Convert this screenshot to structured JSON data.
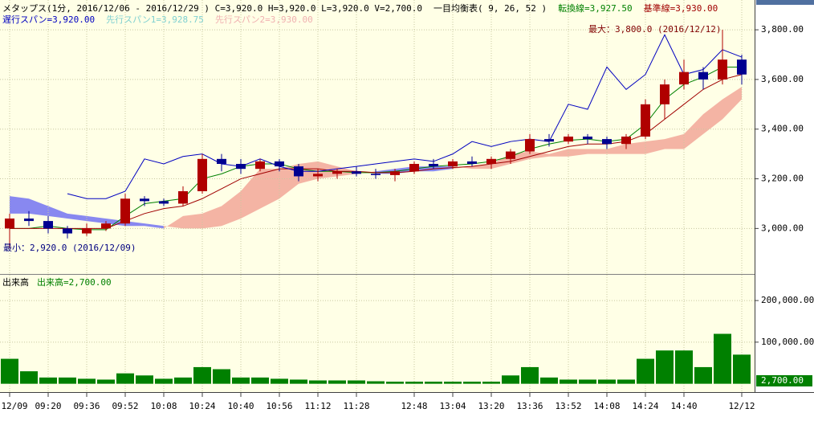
{
  "chart_data": [
    {
      "type": "candlestick",
      "title": "メタップス(1分, 2016/12/06 - 2016/12/29 ) C=3,920.0 H=3,920.0 L=3,920.0 V=2,700.0",
      "subtitle": "一目均衡表( 9, 26, 52 )",
      "ohlc": {
        "open": [
          3000,
          3040,
          3030,
          3000,
          2980,
          3000,
          3020,
          3120,
          3110,
          3100,
          3150,
          3280,
          3260,
          3240,
          3270,
          3250,
          3210,
          3220,
          3230,
          3220,
          3215,
          3230,
          3260,
          3250,
          3270,
          3260,
          3280,
          3310,
          3360,
          3350,
          3370,
          3360,
          3340,
          3370,
          3500,
          3580,
          3630,
          3600,
          3680
        ],
        "high": [
          3060,
          3070,
          3050,
          3010,
          3020,
          3030,
          3140,
          3130,
          3120,
          3170,
          3300,
          3300,
          3280,
          3280,
          3280,
          3260,
          3240,
          3240,
          3250,
          3240,
          3240,
          3270,
          3280,
          3280,
          3290,
          3290,
          3320,
          3380,
          3380,
          3380,
          3380,
          3370,
          3380,
          3520,
          3600,
          3680,
          3650,
          3800,
          3700
        ],
        "low": [
          2920,
          3010,
          2980,
          2960,
          2970,
          2990,
          3010,
          3090,
          3090,
          3090,
          3140,
          3230,
          3220,
          3230,
          3230,
          3190,
          3190,
          3200,
          3210,
          3200,
          3190,
          3220,
          3240,
          3240,
          3250,
          3240,
          3260,
          3300,
          3330,
          3340,
          3340,
          3320,
          3320,
          3360,
          3440,
          3560,
          3560,
          3580,
          3580
        ],
        "close": [
          3040,
          3030,
          3000,
          2980,
          3000,
          3020,
          3120,
          3110,
          3100,
          3150,
          3280,
          3260,
          3240,
          3270,
          3250,
          3210,
          3220,
          3230,
          3220,
          3215,
          3230,
          3260,
          3250,
          3270,
          3260,
          3280,
          3310,
          3360,
          3350,
          3370,
          3360,
          3340,
          3370,
          3500,
          3580,
          3630,
          3600,
          3680,
          3620
        ]
      },
      "up_color": "#b00000",
      "down_color": "#000090",
      "series": [
        {
          "name": "転換線=3,927.50",
          "color": "#008000",
          "kind": "line",
          "values": [
            3000,
            3000,
            3010,
            3000,
            2995,
            2995,
            3050,
            3100,
            3110,
            3120,
            3200,
            3220,
            3250,
            3260,
            3260,
            3240,
            3230,
            3230,
            3225,
            3225,
            3230,
            3240,
            3250,
            3255,
            3260,
            3270,
            3290,
            3320,
            3340,
            3355,
            3360,
            3350,
            3360,
            3420,
            3520,
            3580,
            3610,
            3650,
            3650
          ]
        },
        {
          "name": "基準線=3,930.00",
          "color": "#a00000",
          "kind": "line",
          "values": [
            3000,
            3000,
            3000,
            3000,
            3000,
            3000,
            3030,
            3060,
            3080,
            3090,
            3120,
            3160,
            3200,
            3220,
            3240,
            3240,
            3240,
            3230,
            3230,
            3225,
            3225,
            3230,
            3240,
            3245,
            3250,
            3260,
            3270,
            3290,
            3310,
            3330,
            3340,
            3340,
            3350,
            3380,
            3440,
            3500,
            3560,
            3600,
            3620
          ]
        },
        {
          "name": "遅行スパン=3,920.00",
          "color": "#0000c0",
          "kind": "line",
          "values": [
            null,
            null,
            null,
            3140,
            3120,
            3120,
            3150,
            3280,
            3260,
            3290,
            3300,
            3260,
            3250,
            3280,
            3250,
            3230,
            3230,
            3240,
            3250,
            3260,
            3270,
            3280,
            3270,
            3300,
            3350,
            3330,
            3350,
            3360,
            3350,
            3500,
            3480,
            3650,
            3560,
            3620,
            3780,
            3620,
            3640,
            3720,
            3690
          ]
        },
        {
          "name": "先行スパン1=3,928.75",
          "color": "#7fd0d0",
          "kind": "span",
          "values": [
            3060,
            3060,
            3050,
            3040,
            3030,
            3020,
            3010,
            3010,
            3000,
            3050,
            3060,
            3090,
            3150,
            3240,
            3240,
            3260,
            3270,
            3250,
            3230,
            3220,
            3220,
            3230,
            3230,
            3240,
            3250,
            3260,
            3300,
            3310,
            3300,
            3320,
            3320,
            3320,
            3340,
            3350,
            3360,
            3380,
            3460,
            3520,
            3570
          ]
        },
        {
          "name": "先行スパン2=3,930.00",
          "color": "#f0b0b0",
          "kind": "span",
          "values": [
            3130,
            3120,
            3090,
            3060,
            3050,
            3040,
            3030,
            3020,
            3010,
            3000,
            3000,
            3010,
            3040,
            3080,
            3120,
            3180,
            3200,
            3210,
            3220,
            3230,
            3240,
            3250,
            3250,
            3250,
            3240,
            3240,
            3260,
            3280,
            3290,
            3290,
            3300,
            3300,
            3300,
            3300,
            3320,
            3320,
            3380,
            3440,
            3520
          ]
        }
      ],
      "cloud_colors": {
        "up": "#f4b4a4",
        "down": "#8888f0"
      },
      "annotations": [
        {
          "text": "最大：3,800.0 (2016/12/12)",
          "color": "#800000"
        },
        {
          "text": "最小：2,920.0 (2016/12/09)",
          "color": "#000080"
        }
      ],
      "ylim": [
        2820,
        3920
      ],
      "yticks": [
        {
          "value": 3000,
          "label": "3,000.00"
        },
        {
          "value": 3200,
          "label": "3,200.00"
        },
        {
          "value": 3400,
          "label": "3,400.00"
        },
        {
          "value": 3600,
          "label": "3,600.00"
        },
        {
          "value": 3800,
          "label": "3,800.00"
        }
      ],
      "grid": true
    },
    {
      "type": "bar",
      "title": "出来高",
      "categories": [
        "12/09",
        null,
        "09:20",
        null,
        "09:36",
        null,
        "09:52",
        null,
        "10:08",
        null,
        "10:24",
        null,
        "10:40",
        null,
        "10:56",
        null,
        "11:12",
        null,
        "11:28",
        null,
        null,
        "12:48",
        null,
        "13:04",
        null,
        "13:20",
        null,
        "13:36",
        null,
        "13:52",
        null,
        "14:08",
        null,
        "14:24",
        null,
        "14:40",
        null,
        null,
        "12/12"
      ],
      "series": [
        {
          "name": "出来高=2,700.00",
          "color": "#008000",
          "values": [
            60000,
            30000,
            15000,
            15000,
            12000,
            10000,
            25000,
            20000,
            12000,
            15000,
            40000,
            35000,
            15000,
            15000,
            12000,
            10000,
            8000,
            8000,
            8000,
            6000,
            5000,
            5000,
            5000,
            5000,
            5000,
            5000,
            20000,
            40000,
            15000,
            10000,
            10000,
            10000,
            10000,
            60000,
            80000,
            80000,
            40000,
            120000,
            70000
          ]
        }
      ],
      "current_label": "2,700.00",
      "ylim": [
        -20000,
        260000
      ],
      "yticks": [
        {
          "value": 100000,
          "label": "100,000.00"
        },
        {
          "value": 200000,
          "label": "200,000.00"
        }
      ],
      "grid": true
    }
  ]
}
